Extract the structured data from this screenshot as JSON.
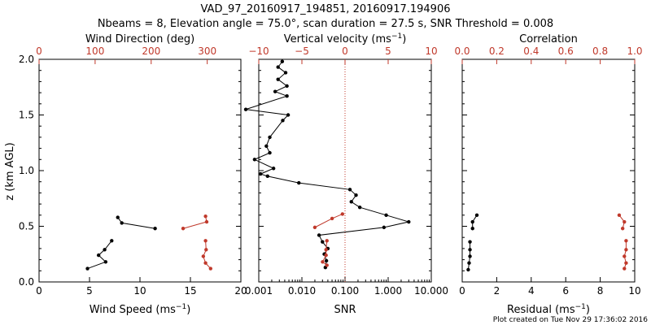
{
  "title_line1": "VAD_97_20160917_194851, 20160917.194906",
  "title_line2": "Nbeams = 8, Elevation angle = 75.0°, scan duration = 27.5 s, SNR Threshold = 0.008",
  "footer": "Plot created on Tue Nov 29 17:36:02 2016",
  "colors": {
    "black": "#000000",
    "red": "#c0392b"
  },
  "chart_data": [
    {
      "type": "line",
      "ylabel": "z (km AGL)",
      "ylim": [
        0,
        2.0
      ],
      "yticks": [
        "0.0",
        "0.5",
        "1.0",
        "1.5",
        "2.0"
      ],
      "bottom_axis": {
        "label": "Wind Speed (ms",
        "label_sup": "−1",
        "label_end": ")",
        "range": [
          0,
          20
        ],
        "ticks": [
          "0",
          "5",
          "10",
          "15",
          "20"
        ]
      },
      "top_axis": {
        "label": "Wind Direction (deg)",
        "range": [
          0,
          360
        ],
        "ticks": [
          "0",
          "100",
          "200",
          "300"
        ]
      },
      "series": [
        {
          "axis": "bottom",
          "color": "#000000",
          "x": [
            7.8,
            8.2,
            11.5,
            null,
            7.2,
            6.5,
            5.9,
            6.6,
            4.8
          ],
          "y": [
            0.58,
            0.53,
            0.48,
            null,
            0.37,
            0.29,
            0.24,
            0.18,
            0.12
          ]
        },
        {
          "axis": "top",
          "color": "#c0392b",
          "x": [
            297,
            299,
            257,
            null,
            297,
            298,
            293,
            297,
            306
          ],
          "y": [
            0.59,
            0.54,
            0.48,
            null,
            0.37,
            0.29,
            0.23,
            0.17,
            0.12
          ]
        }
      ]
    },
    {
      "type": "line",
      "ylim": [
        0,
        2.0
      ],
      "bottom_axis": {
        "label": "SNR",
        "scale": "log",
        "range": [
          0.001,
          10
        ],
        "ticks": [
          "0.001",
          "0.010",
          "0.100",
          "1.000",
          "10.000"
        ]
      },
      "top_axis": {
        "label": "Vertical velocity (ms",
        "label_sup": "−1",
        "label_end": ")",
        "range": [
          -10,
          10
        ],
        "ticks": [
          "−10",
          "−5",
          "0",
          "5",
          "10"
        ]
      },
      "reference_line": {
        "axis": "top",
        "value": 0,
        "style": "dotted",
        "color": "#c0392b"
      },
      "series": [
        {
          "axis": "bottom",
          "color": "#000000",
          "x": [
            0.0035,
            0.0028,
            0.0042,
            0.0028,
            0.0045,
            0.0024,
            0.0045,
            0.0005,
            0.0048,
            0.0036,
            0.0018,
            0.0015,
            0.0018,
            0.0008,
            0.0022,
            0.0011,
            0.0016,
            0.0085,
            0.13,
            0.18,
            0.14,
            0.22,
            0.9,
            3.0,
            0.8,
            0.025,
            0.03,
            0.04,
            0.033,
            0.037,
            0.035
          ],
          "y": [
            1.98,
            1.93,
            1.88,
            1.82,
            1.76,
            1.71,
            1.67,
            1.55,
            1.5,
            1.45,
            1.3,
            1.22,
            1.16,
            1.1,
            1.02,
            0.97,
            0.95,
            0.89,
            0.83,
            0.78,
            0.72,
            0.67,
            0.6,
            0.54,
            0.49,
            0.42,
            0.36,
            0.3,
            0.25,
            0.19,
            0.13
          ]
        },
        {
          "axis": "top",
          "color": "#c0392b",
          "x": [
            -0.3,
            -1.5,
            -3.5,
            null,
            -2.1,
            -2.2,
            -2.2,
            -2.6,
            -2.1
          ],
          "y": [
            0.61,
            0.57,
            0.49,
            null,
            0.37,
            0.29,
            0.24,
            0.18,
            0.15
          ]
        }
      ]
    },
    {
      "type": "line",
      "ylim": [
        0,
        2.0
      ],
      "bottom_axis": {
        "label": "Residual (ms",
        "label_sup": "−1",
        "label_end": ")",
        "range": [
          0,
          10
        ],
        "ticks": [
          "0",
          "2",
          "4",
          "6",
          "8",
          "10"
        ]
      },
      "top_axis": {
        "label": "Correlation",
        "range": [
          0,
          1.0
        ],
        "ticks": [
          "0.0",
          "0.2",
          "0.4",
          "0.6",
          "0.8",
          "1.0"
        ]
      },
      "series": [
        {
          "axis": "bottom",
          "color": "#000000",
          "x": [
            0.85,
            0.6,
            0.6,
            null,
            0.45,
            0.45,
            0.45,
            0.4,
            0.35
          ],
          "y": [
            0.6,
            0.54,
            0.48,
            null,
            0.36,
            0.29,
            0.23,
            0.17,
            0.11
          ]
        },
        {
          "axis": "top",
          "color": "#c0392b",
          "x": [
            0.91,
            0.94,
            0.93,
            null,
            0.95,
            0.95,
            0.94,
            0.95,
            0.94
          ],
          "y": [
            0.6,
            0.54,
            0.48,
            null,
            0.37,
            0.29,
            0.23,
            0.17,
            0.12
          ]
        }
      ]
    }
  ]
}
